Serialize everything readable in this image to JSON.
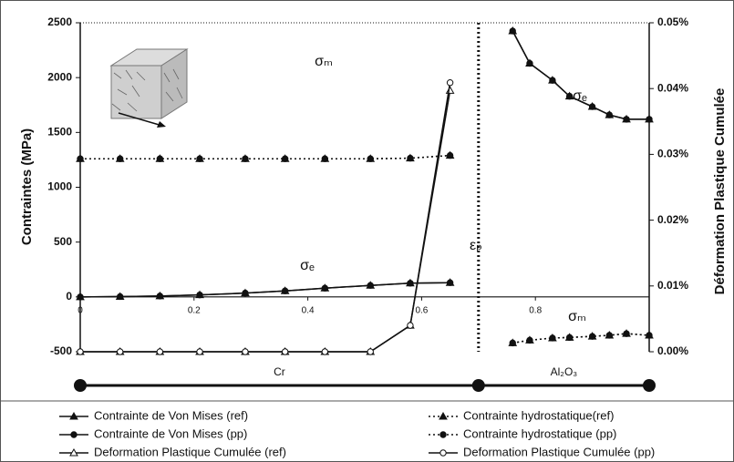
{
  "chart_data": {
    "type": "line",
    "y_label": "Contraintes (MPa)",
    "y2_label": "Déformation Plastique Cumulée",
    "x": [
      0,
      0.07,
      0.14,
      0.21,
      0.29,
      0.36,
      0.43,
      0.51,
      0.58,
      0.65,
      0.7,
      0.76,
      0.79,
      0.83,
      0.86,
      0.9,
      0.93,
      0.96,
      1.0
    ],
    "xlim": [
      0,
      1.0
    ],
    "xticks": [
      0,
      0.2,
      0.4,
      0.6,
      0.8
    ],
    "ylim": [
      -500,
      2500
    ],
    "yticks": [
      -500,
      0,
      500,
      1000,
      1500,
      2000,
      2500
    ],
    "y2lim": [
      0,
      0.05
    ],
    "y2ticks": [
      {
        "value": 0,
        "label": "0.00%"
      },
      {
        "value": 0.01,
        "label": "0.01%"
      },
      {
        "value": 0.02,
        "label": "0.02%"
      },
      {
        "value": 0.03,
        "label": "0.03%"
      },
      {
        "value": 0.04,
        "label": "0.04%"
      },
      {
        "value": 0.05,
        "label": "0.05%"
      }
    ],
    "materials": [
      "Cr",
      "Al₂O₃"
    ],
    "annotations": [
      "σₘ",
      "σₑ",
      "εₚ",
      "σₑ",
      "σₘ"
    ],
    "series": [
      {
        "name": "Contrainte de Von Mises (ref)",
        "color": "#111111",
        "marker": "triangle",
        "dash": "solid",
        "axis": "y",
        "values": [
          0,
          3,
          8,
          18,
          35,
          55,
          80,
          105,
          125,
          130,
          null,
          2425,
          2130,
          1975,
          1830,
          1735,
          1660,
          1620,
          1620
        ]
      },
      {
        "name": "Contrainte hydrostatique(ref)",
        "color": "#111111",
        "marker": "triangle",
        "dash": "dotted",
        "axis": "y",
        "values": [
          1260,
          1260,
          1260,
          1260,
          1260,
          1260,
          1260,
          1260,
          1265,
          1290,
          null,
          -420,
          -395,
          -375,
          -370,
          -360,
          -350,
          -335,
          -350
        ]
      },
      {
        "name": "Contrainte de Von Mises (pp)",
        "color": "#111111",
        "marker": "circle",
        "dash": "solid",
        "axis": "y",
        "values": [
          0,
          3,
          8,
          18,
          35,
          55,
          80,
          105,
          125,
          130,
          null,
          2425,
          2130,
          1975,
          1830,
          1735,
          1660,
          1620,
          1620
        ]
      },
      {
        "name": "Contrainte hydrostatique (pp)",
        "color": "#111111",
        "marker": "circle",
        "dash": "dotted",
        "axis": "y",
        "values": [
          1260,
          1260,
          1260,
          1260,
          1260,
          1260,
          1260,
          1260,
          1265,
          1290,
          null,
          -420,
          -395,
          -375,
          -370,
          -360,
          -350,
          -335,
          -350
        ]
      },
      {
        "name": "Deformation Plastique Cumulée (ref)",
        "color": "#111111",
        "marker": "open-triangle",
        "dash": "solid",
        "axis": "y2",
        "values": [
          0,
          0,
          0,
          0,
          0,
          0,
          0,
          0,
          0.004,
          0.0397,
          null,
          null,
          null,
          null,
          null,
          null,
          null,
          null,
          null
        ]
      },
      {
        "name": "Deformation Plastique Cumulée (pp)",
        "color": "#111111",
        "marker": "open-circle",
        "dash": "solid",
        "axis": "y2",
        "values": [
          0,
          0,
          0,
          0,
          0,
          0,
          0,
          0,
          0.004,
          0.0409,
          null,
          null,
          null,
          null,
          null,
          null,
          null,
          null,
          null
        ]
      }
    ]
  }
}
